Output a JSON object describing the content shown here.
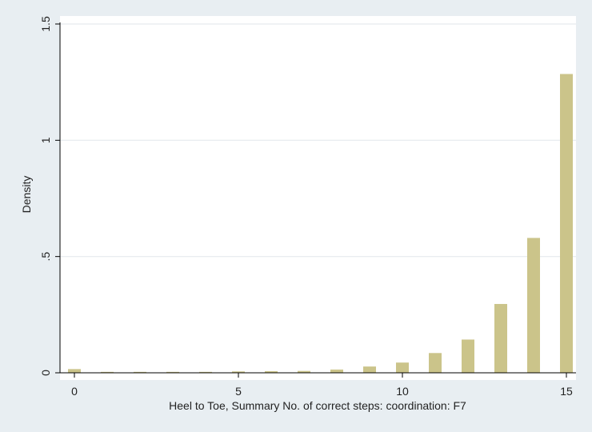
{
  "chart_data": {
    "type": "bar",
    "xlabel": "Heel to Toe, Summary No. of correct steps: coordination: F7",
    "ylabel": "Density",
    "x_ticks": [
      "0",
      "5",
      "10",
      "15"
    ],
    "y_ticks": [
      "0",
      ".5",
      "1",
      "1.5"
    ],
    "x_tick_values": [
      0,
      5,
      10,
      15
    ],
    "y_tick_values": [
      0,
      0.5,
      1,
      1.5
    ],
    "xlim": [
      -0.3,
      15.3
    ],
    "ylim": [
      0,
      1.5
    ],
    "grid": true,
    "bar_color": "#cbc48a",
    "x": [
      0,
      1,
      2,
      3,
      4,
      5,
      6,
      7,
      8,
      9,
      10,
      11,
      12,
      13,
      14,
      15
    ],
    "values": [
      0.016,
      0.004,
      0.004,
      0.004,
      0.004,
      0.006,
      0.007,
      0.008,
      0.014,
      0.027,
      0.044,
      0.085,
      0.143,
      0.296,
      0.58,
      1.285
    ]
  }
}
